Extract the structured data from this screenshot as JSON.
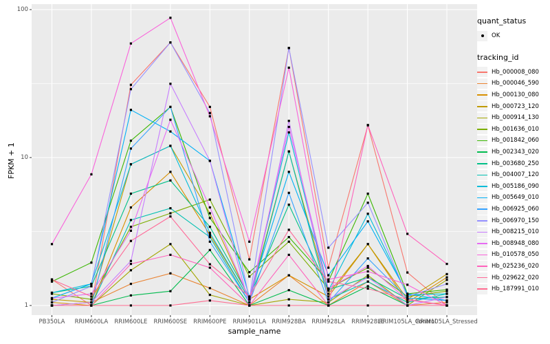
{
  "chart_data": {
    "type": "line",
    "title": "",
    "xlabel": "sample_name",
    "ylabel": "FPKM + 1",
    "y_scale": "log10",
    "y_ticks": [
      1,
      10,
      100
    ],
    "y_minor_gridlines": [
      3.162,
      31.623
    ],
    "ylim": [
      1,
      100
    ],
    "ylim_log10": [
      -0.065,
      2.037
    ],
    "grid": true,
    "legend_position": "right",
    "panel_background": "#EBEBEB",
    "gridline_color": "#FFFFFF",
    "point_color": "#000000",
    "tick_text_color": "#4d4d4d",
    "categories": [
      "PB350LA",
      "RRIM600LA",
      "RRIM600LE",
      "RRIM600SE",
      "RRIM600PE",
      "RRIM901LA",
      "RRIM928BA",
      "RRIM928LA",
      "RRIM928LE",
      "RRIM105LA_Control",
      "RRIM105LA_Stressed"
    ],
    "series": [
      {
        "name": "Hb_000008_080",
        "color": "#F8766D",
        "values": [
          1.5,
          1.0,
          31.0,
          60.0,
          22.0,
          2.05,
          55.0,
          1.8,
          16.5,
          1.67,
          1.0
        ]
      },
      {
        "name": "Hb_000046_590",
        "color": "#EA8331",
        "values": [
          1.0,
          1.05,
          1.4,
          1.65,
          1.31,
          1.0,
          1.6,
          1.0,
          1.45,
          1.0,
          1.05
        ]
      },
      {
        "name": "Hb_000130_080",
        "color": "#D89000",
        "values": [
          1.05,
          1.0,
          4.6,
          8.0,
          3.0,
          1.1,
          1.6,
          1.15,
          2.6,
          1.05,
          1.55
        ]
      },
      {
        "name": "Hb_000723_120",
        "color": "#C09B00",
        "values": [
          1.1,
          1.05,
          9.0,
          12.0,
          4.2,
          1.1,
          11.0,
          1.2,
          2.6,
          1.1,
          1.63
        ]
      },
      {
        "name": "Hb_000914_130",
        "color": "#A3A500",
        "values": [
          1.0,
          1.0,
          1.73,
          2.6,
          1.18,
          1.0,
          1.1,
          1.05,
          1.6,
          1.0,
          1.49
        ]
      },
      {
        "name": "Hb_001636_010",
        "color": "#7CAE00",
        "values": [
          1.2,
          1.1,
          3.4,
          4.2,
          5.2,
          1.57,
          2.7,
          1.3,
          1.8,
          1.15,
          1.25
        ]
      },
      {
        "name": "Hb_001842_060",
        "color": "#39B600",
        "values": [
          1.45,
          1.95,
          13.0,
          22.0,
          3.9,
          1.68,
          2.9,
          1.46,
          5.7,
          1.2,
          1.28
        ]
      },
      {
        "name": "Hb_002343_020",
        "color": "#00BB4E",
        "values": [
          1.0,
          1.0,
          1.17,
          1.25,
          2.37,
          1.0,
          1.27,
          1.0,
          1.35,
          1.0,
          1.0
        ]
      },
      {
        "name": "Hb_003680_250",
        "color": "#00C087",
        "values": [
          1.22,
          1.35,
          5.7,
          7.0,
          3.4,
          1.14,
          4.8,
          1.28,
          1.55,
          1.11,
          1.14
        ]
      },
      {
        "name": "Hb_004007_120",
        "color": "#00C0B2",
        "values": [
          1.0,
          1.0,
          3.78,
          4.54,
          2.9,
          1.05,
          11.0,
          1.1,
          1.45,
          1.05,
          1.2
        ]
      },
      {
        "name": "Hb_005186_090",
        "color": "#00BCD8",
        "values": [
          1.22,
          1.4,
          9.0,
          12.0,
          3.1,
          1.1,
          14.8,
          1.26,
          4.17,
          1.18,
          1.2
        ]
      },
      {
        "name": "Hb_005649_010",
        "color": "#00B0F6",
        "values": [
          1.12,
          1.4,
          21.0,
          15.0,
          9.5,
          1.14,
          8.0,
          1.6,
          3.7,
          1.2,
          1.08
        ]
      },
      {
        "name": "Hb_006925_060",
        "color": "#35A2FF",
        "values": [
          1.0,
          1.0,
          11.5,
          22.0,
          2.7,
          1.05,
          5.77,
          1.05,
          2.08,
          1.12,
          1.08
        ]
      },
      {
        "name": "Hb_006970_150",
        "color": "#9590FF",
        "values": [
          1.05,
          1.35,
          29.0,
          60.0,
          20.0,
          1.1,
          55.0,
          2.46,
          4.95,
          1.15,
          1.4
        ]
      },
      {
        "name": "Hb_008215_010",
        "color": "#C77CFF",
        "values": [
          1.0,
          1.05,
          2.0,
          31.5,
          9.5,
          1.0,
          17.7,
          1.1,
          1.55,
          1.0,
          1.14
        ]
      },
      {
        "name": "Hb_008948_080",
        "color": "#E76BF3",
        "values": [
          1.12,
          1.2,
          3.2,
          18.0,
          4.6,
          1.1,
          16.1,
          1.3,
          1.85,
          1.09,
          1.0
        ]
      },
      {
        "name": "Hb_010578_050",
        "color": "#FA62DB",
        "values": [
          2.6,
          7.7,
          59.0,
          88.0,
          19.0,
          2.7,
          40.5,
          1.5,
          1.7,
          1.38,
          1.0
        ]
      },
      {
        "name": "Hb_025236_020",
        "color": "#FF62BC",
        "values": [
          1.0,
          1.0,
          1.91,
          2.2,
          1.8,
          1.0,
          2.2,
          1.0,
          16.6,
          3.05,
          1.91
        ]
      },
      {
        "name": "Hb_029622_020",
        "color": "#FF6A98",
        "values": [
          1.5,
          1.15,
          2.73,
          4.0,
          1.9,
          1.15,
          3.25,
          1.45,
          1.3,
          1.1,
          1.0
        ]
      },
      {
        "name": "Hb_187991_010",
        "color": "#FF6C91",
        "values": [
          1.0,
          1.0,
          1.0,
          1.0,
          1.08,
          1.0,
          1.0,
          1.0,
          1.0,
          1.0,
          1.0
        ]
      }
    ],
    "legend": {
      "quant_status": {
        "title": "quant_status",
        "entries": [
          {
            "label": "OK",
            "symbol": "black-point"
          }
        ]
      },
      "tracking_id": {
        "title": "tracking_id"
      }
    }
  }
}
